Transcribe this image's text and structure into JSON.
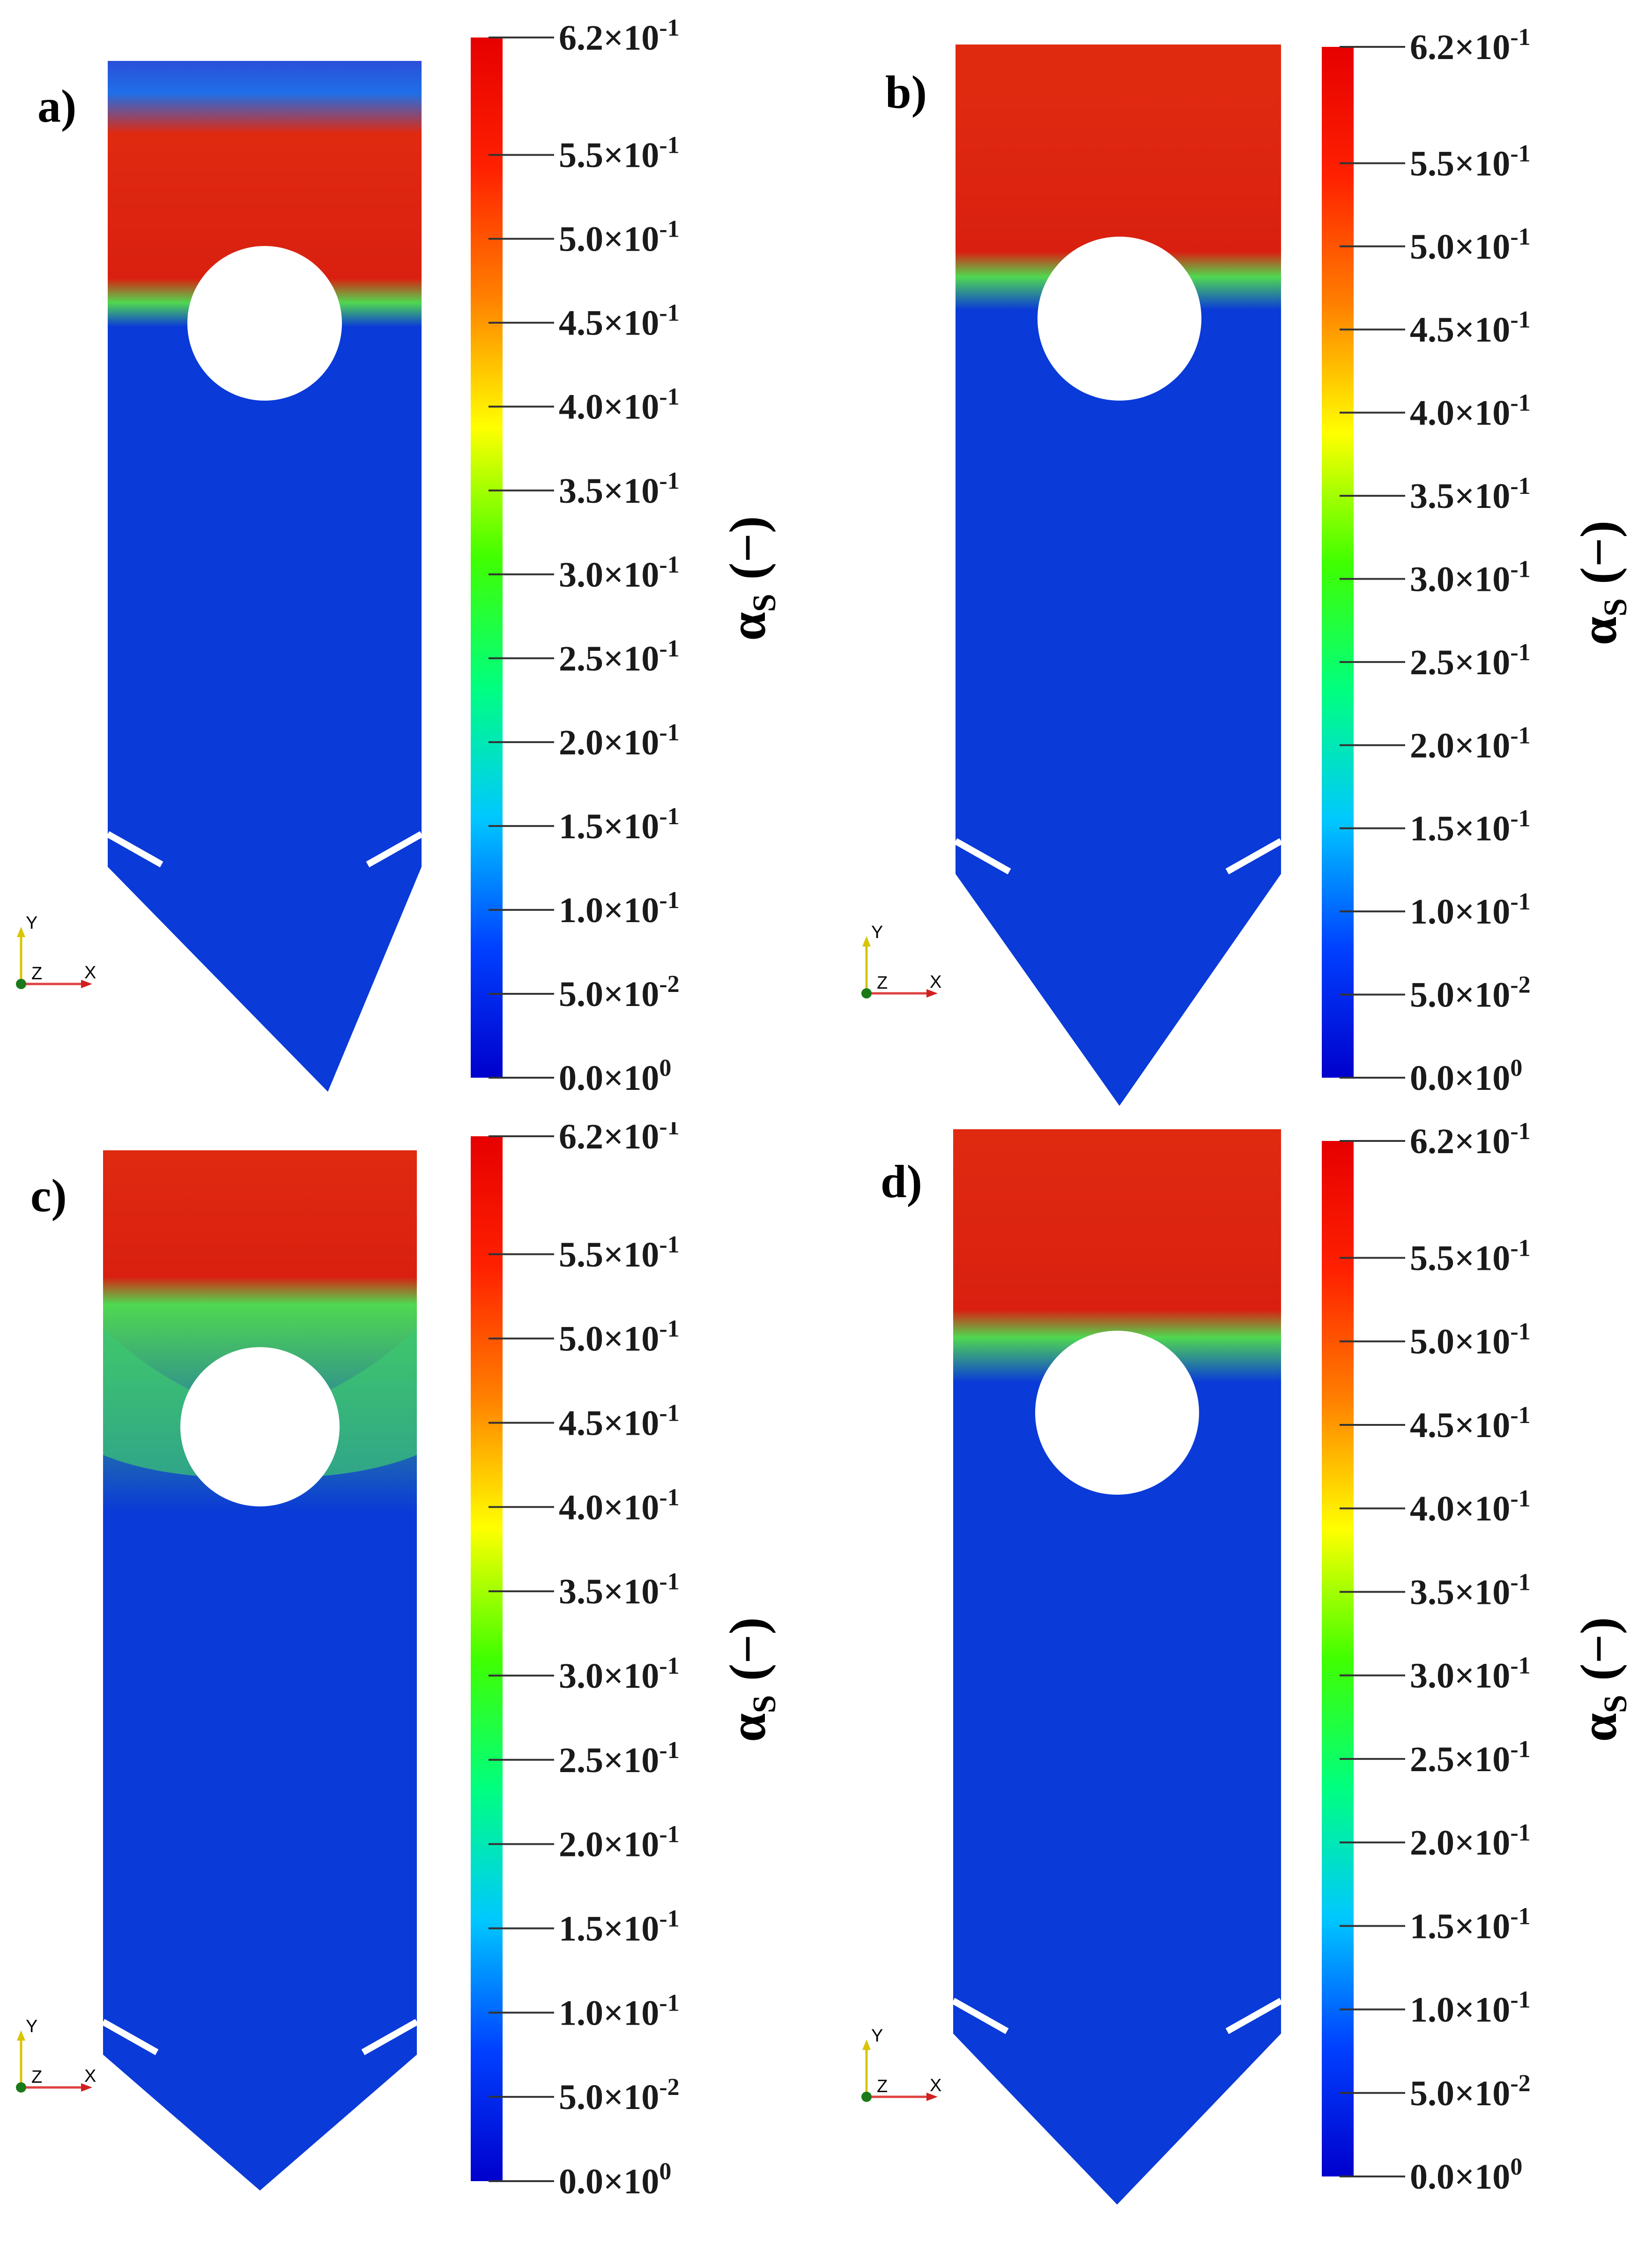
{
  "figure": {
    "colorbar": {
      "variable_symbol": "α",
      "variable_subscript": "S",
      "unit": "(−)",
      "ticks": [
        {
          "mant": "6.2×10",
          "exp": "-1",
          "value": 0.62
        },
        {
          "mant": "5.5×10",
          "exp": "-1",
          "value": 0.55
        },
        {
          "mant": "5.0×10",
          "exp": "-1",
          "value": 0.5
        },
        {
          "mant": "4.5×10",
          "exp": "-1",
          "value": 0.45
        },
        {
          "mant": "4.0×10",
          "exp": "-1",
          "value": 0.4
        },
        {
          "mant": "3.5×10",
          "exp": "-1",
          "value": 0.35
        },
        {
          "mant": "3.0×10",
          "exp": "-1",
          "value": 0.3
        },
        {
          "mant": "2.5×10",
          "exp": "-1",
          "value": 0.25
        },
        {
          "mant": "2.0×10",
          "exp": "-1",
          "value": 0.2
        },
        {
          "mant": "1.5×10",
          "exp": "-1",
          "value": 0.15
        },
        {
          "mant": "1.0×10",
          "exp": "-1",
          "value": 0.1
        },
        {
          "mant": "5.0×10",
          "exp": "-2",
          "value": 0.05
        },
        {
          "mant": "0.0×10",
          "exp": "0",
          "value": 0.0
        }
      ],
      "range": [
        0.0,
        0.62
      ],
      "colors": [
        "#0000cc",
        "#0040ff",
        "#00c8ff",
        "#00ff80",
        "#40ff00",
        "#ffff00",
        "#ff8000",
        "#ff2000",
        "#e60000"
      ]
    },
    "axes_triad": {
      "y": "Y",
      "z": "Z",
      "x": "X"
    },
    "panels": [
      {
        "label": "a)"
      },
      {
        "label": "b)"
      },
      {
        "label": "c)"
      },
      {
        "label": "d)"
      }
    ]
  }
}
